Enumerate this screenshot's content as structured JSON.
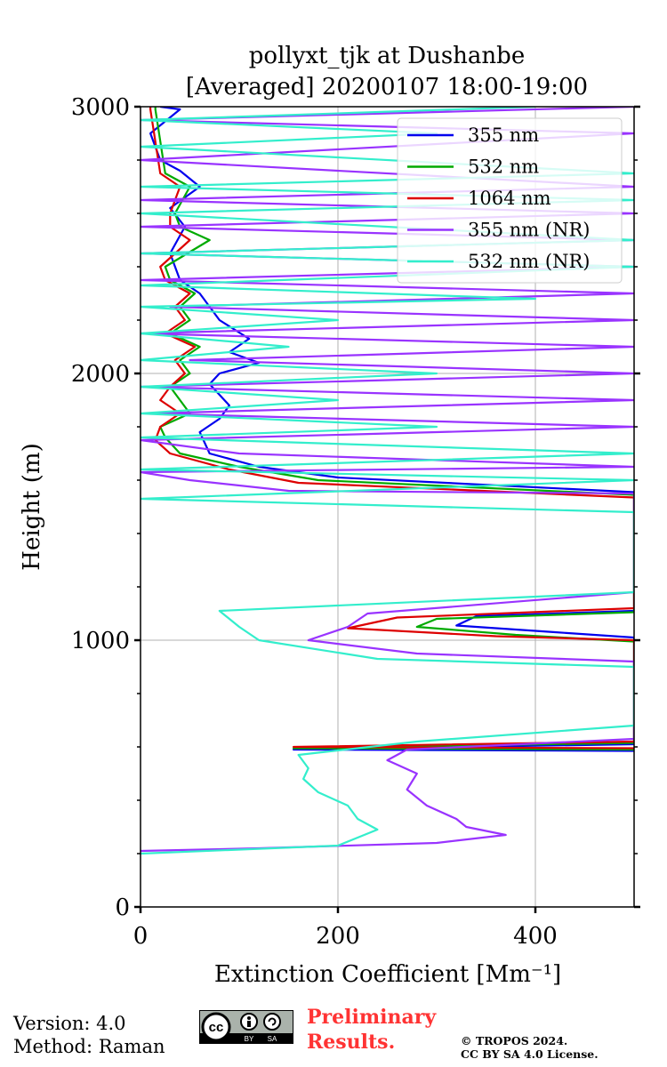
{
  "chart_data": {
    "type": "line",
    "title": [
      "pollyxt_tjk at Dushanbe",
      "[Averaged] 20200107 18:00-19:00"
    ],
    "xlabel": "Extinction Coefficient [Mm⁻¹]",
    "ylabel": "Height (m)",
    "xlim": [
      0,
      500
    ],
    "ylim": [
      0,
      3000
    ],
    "x_ticks": [
      0,
      200,
      400
    ],
    "y_ticks": [
      0,
      1000,
      2000,
      3000
    ],
    "grid": true,
    "legend_position": "top-right",
    "series": [
      {
        "name": "355 nm",
        "color": "#0000ee",
        "points": [
          [
            500,
            585
          ],
          [
            155,
            590
          ],
          [
            500,
            610
          ],
          [
            500,
            1010
          ],
          [
            420,
            1030
          ],
          [
            320,
            1055
          ],
          [
            340,
            1090
          ],
          [
            500,
            1110
          ],
          [
            500,
            1555
          ],
          [
            200,
            1610
          ],
          [
            120,
            1650
          ],
          [
            70,
            1700
          ],
          [
            60,
            1780
          ],
          [
            80,
            1830
          ],
          [
            90,
            1880
          ],
          [
            70,
            1960
          ],
          [
            80,
            2000
          ],
          [
            120,
            2040
          ],
          [
            90,
            2080
          ],
          [
            110,
            2130
          ],
          [
            80,
            2200
          ],
          [
            60,
            2300
          ],
          [
            40,
            2350
          ],
          [
            30,
            2450
          ],
          [
            45,
            2550
          ],
          [
            30,
            2620
          ],
          [
            60,
            2700
          ],
          [
            40,
            2760
          ],
          [
            20,
            2800
          ],
          [
            10,
            2900
          ],
          [
            40,
            2990
          ],
          [
            20,
            3000
          ]
        ]
      },
      {
        "name": "532 nm",
        "color": "#00aa00",
        "points": [
          [
            500,
            590
          ],
          [
            155,
            595
          ],
          [
            500,
            615
          ],
          [
            500,
            995
          ],
          [
            380,
            1020
          ],
          [
            280,
            1050
          ],
          [
            300,
            1080
          ],
          [
            500,
            1105
          ],
          [
            500,
            1545
          ],
          [
            180,
            1600
          ],
          [
            100,
            1650
          ],
          [
            40,
            1700
          ],
          [
            25,
            1760
          ],
          [
            20,
            1800
          ],
          [
            50,
            1850
          ],
          [
            40,
            1900
          ],
          [
            30,
            1950
          ],
          [
            50,
            2000
          ],
          [
            40,
            2050
          ],
          [
            60,
            2100
          ],
          [
            30,
            2150
          ],
          [
            50,
            2200
          ],
          [
            40,
            2250
          ],
          [
            55,
            2300
          ],
          [
            30,
            2350
          ],
          [
            25,
            2400
          ],
          [
            70,
            2500
          ],
          [
            40,
            2550
          ],
          [
            35,
            2600
          ],
          [
            50,
            2700
          ],
          [
            25,
            2750
          ],
          [
            15,
            2990
          ],
          [
            15,
            3000
          ]
        ]
      },
      {
        "name": "1064 nm",
        "color": "#dd0000",
        "points": [
          [
            500,
            595
          ],
          [
            155,
            600
          ],
          [
            500,
            620
          ],
          [
            500,
            1000
          ],
          [
            360,
            1015
          ],
          [
            210,
            1045
          ],
          [
            260,
            1085
          ],
          [
            500,
            1120
          ],
          [
            500,
            1535
          ],
          [
            160,
            1590
          ],
          [
            90,
            1640
          ],
          [
            30,
            1700
          ],
          [
            15,
            1750
          ],
          [
            20,
            1800
          ],
          [
            40,
            1850
          ],
          [
            20,
            1900
          ],
          [
            30,
            1950
          ],
          [
            45,
            2000
          ],
          [
            35,
            2050
          ],
          [
            55,
            2100
          ],
          [
            25,
            2150
          ],
          [
            45,
            2200
          ],
          [
            35,
            2250
          ],
          [
            50,
            2300
          ],
          [
            25,
            2350
          ],
          [
            20,
            2400
          ],
          [
            50,
            2500
          ],
          [
            30,
            2550
          ],
          [
            30,
            2600
          ],
          [
            40,
            2700
          ],
          [
            20,
            2750
          ],
          [
            10,
            2990
          ],
          [
            10,
            3000
          ]
        ]
      },
      {
        "name": "355 nm (NR)",
        "color": "#9933ff",
        "points": [
          [
            0,
            210
          ],
          [
            120,
            220
          ],
          [
            300,
            240
          ],
          [
            370,
            270
          ],
          [
            330,
            300
          ],
          [
            320,
            330
          ],
          [
            290,
            380
          ],
          [
            270,
            440
          ],
          [
            280,
            500
          ],
          [
            250,
            550
          ],
          [
            270,
            590
          ],
          [
            500,
            630
          ],
          [
            500,
            920
          ],
          [
            280,
            950
          ],
          [
            170,
            1000
          ],
          [
            210,
            1050
          ],
          [
            230,
            1100
          ],
          [
            500,
            1180
          ],
          [
            500,
            1550
          ],
          [
            150,
            1560
          ],
          [
            50,
            1600
          ],
          [
            0,
            1630
          ],
          [
            500,
            1650
          ],
          [
            100,
            1700
          ],
          [
            0,
            1750
          ],
          [
            500,
            1800
          ],
          [
            10,
            1850
          ],
          [
            500,
            1900
          ],
          [
            0,
            1950
          ],
          [
            500,
            2000
          ],
          [
            50,
            2050
          ],
          [
            500,
            2100
          ],
          [
            0,
            2150
          ],
          [
            500,
            2200
          ],
          [
            30,
            2250
          ],
          [
            500,
            2300
          ],
          [
            0,
            2350
          ],
          [
            500,
            2400
          ],
          [
            0,
            2450
          ],
          [
            500,
            2500
          ],
          [
            0,
            2550
          ],
          [
            500,
            2600
          ],
          [
            0,
            2650
          ],
          [
            500,
            2700
          ],
          [
            0,
            2800
          ],
          [
            500,
            2900
          ],
          [
            0,
            2950
          ],
          [
            500,
            3000
          ]
        ]
      },
      {
        "name": "532 nm (NR)",
        "color": "#33eecc",
        "points": [
          [
            0,
            200
          ],
          [
            200,
            230
          ],
          [
            240,
            290
          ],
          [
            220,
            330
          ],
          [
            210,
            380
          ],
          [
            180,
            430
          ],
          [
            165,
            480
          ],
          [
            170,
            520
          ],
          [
            160,
            570
          ],
          [
            280,
            620
          ],
          [
            500,
            680
          ],
          [
            500,
            900
          ],
          [
            240,
            930
          ],
          [
            120,
            1000
          ],
          [
            100,
            1050
          ],
          [
            80,
            1110
          ],
          [
            500,
            1180
          ],
          [
            500,
            1480
          ],
          [
            0,
            1530
          ],
          [
            500,
            1600
          ],
          [
            0,
            1640
          ],
          [
            500,
            1700
          ],
          [
            0,
            1760
          ],
          [
            300,
            1800
          ],
          [
            0,
            1850
          ],
          [
            200,
            1900
          ],
          [
            0,
            1950
          ],
          [
            300,
            2000
          ],
          [
            0,
            2050
          ],
          [
            150,
            2100
          ],
          [
            0,
            2150
          ],
          [
            200,
            2200
          ],
          [
            0,
            2250
          ],
          [
            400,
            2280
          ],
          [
            0,
            2330
          ],
          [
            500,
            2400
          ],
          [
            0,
            2450
          ],
          [
            500,
            2500
          ],
          [
            0,
            2600
          ],
          [
            500,
            2650
          ],
          [
            0,
            2700
          ],
          [
            500,
            2750
          ],
          [
            0,
            2850
          ],
          [
            300,
            2900
          ],
          [
            0,
            2950
          ],
          [
            400,
            3000
          ]
        ]
      }
    ]
  },
  "footer": {
    "version": "Version: 4.0",
    "method": "Method: Raman",
    "preliminary_line1": "Preliminary",
    "preliminary_line2": "Results.",
    "copyright_line1": "© TROPOS 2024.",
    "copyright_line2": "CC BY SA 4.0 License.",
    "badge_cc": "cc",
    "badge_by": "BY",
    "badge_sa": "SA"
  }
}
